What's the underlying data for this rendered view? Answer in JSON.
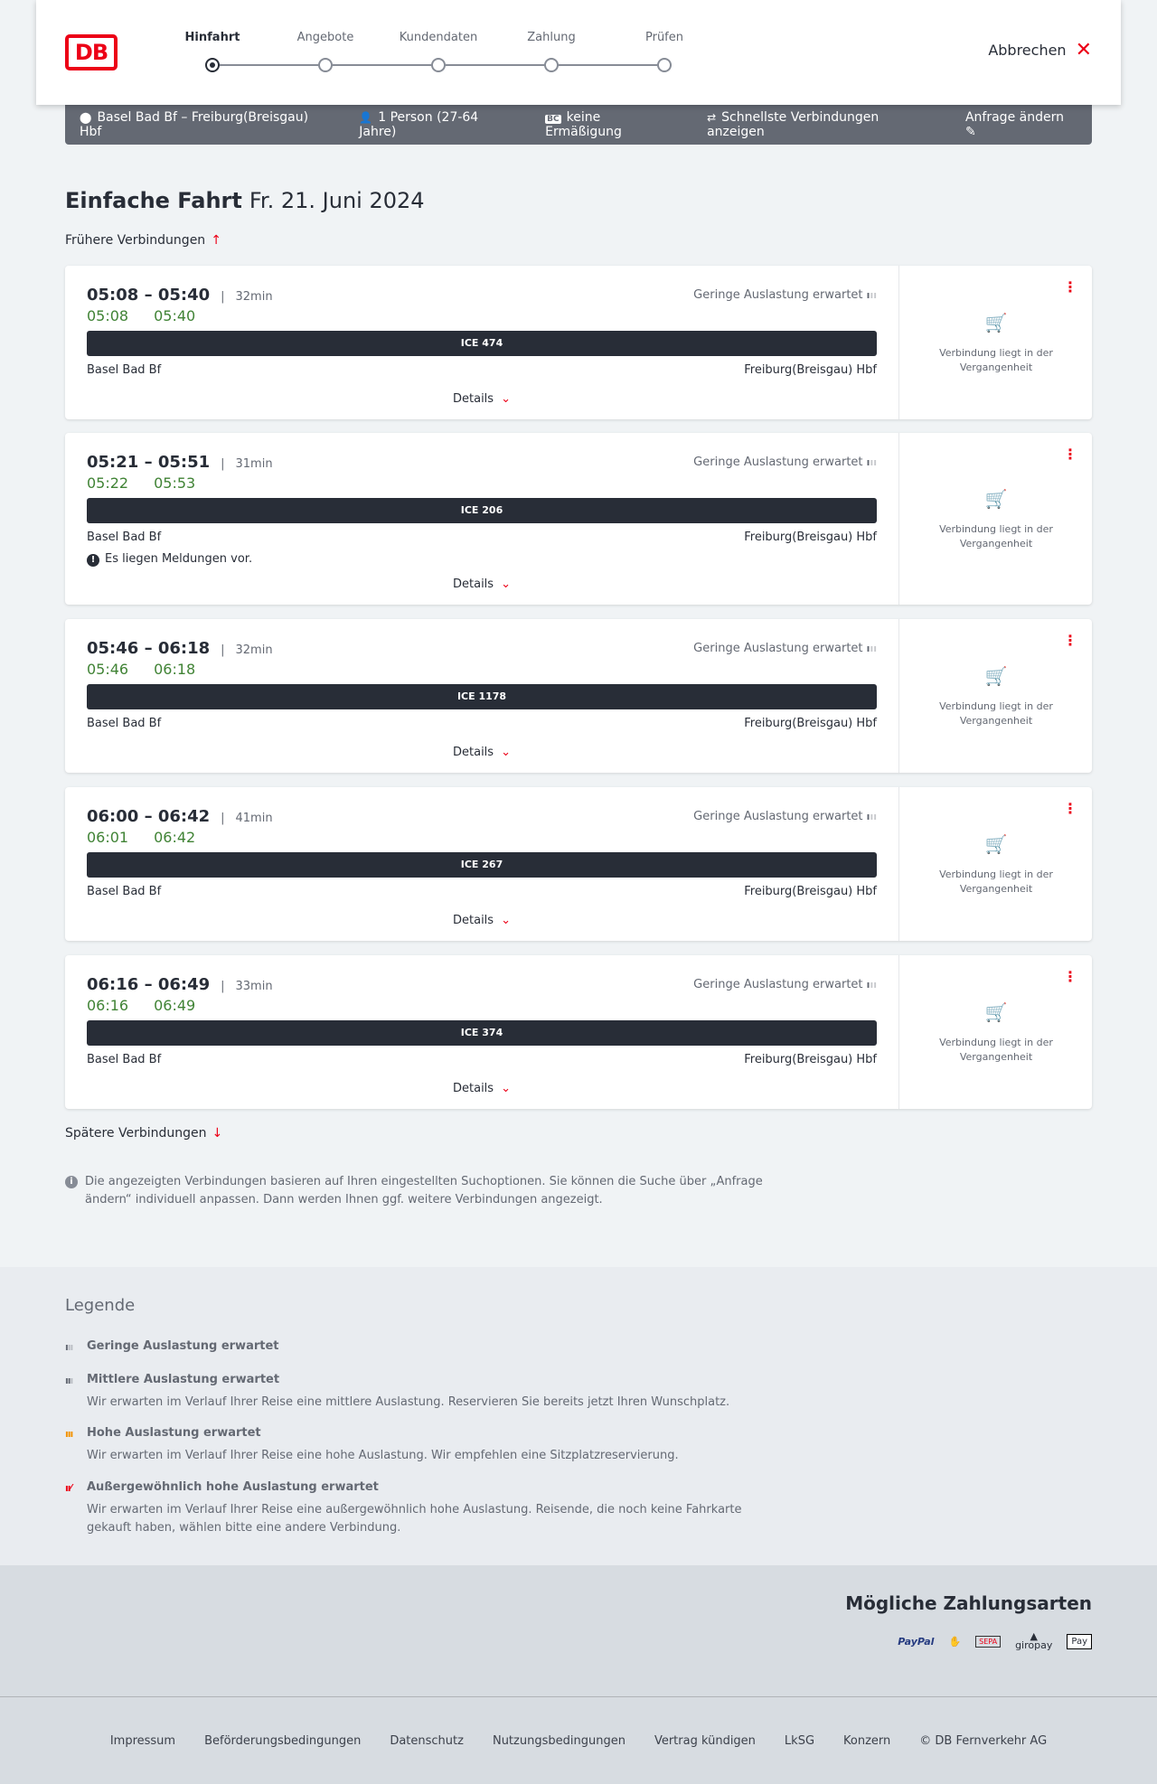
{
  "header": {
    "logo": "DB",
    "steps": [
      "Hinfahrt",
      "Angebote",
      "Kundendaten",
      "Zahlung",
      "Prüfen"
    ],
    "active_step": 0,
    "cancel": "Abbrechen"
  },
  "summary": {
    "route": "Basel Bad Bf – Freiburg(Breisgau) Hbf",
    "passengers": "1 Person (27-64 Jahre)",
    "discount_badge": "BC",
    "discount": "keine Ermäßigung",
    "fastest": "Schnellste Verbindungen anzeigen",
    "edit": "Anfrage ändern"
  },
  "title": {
    "type": "Einfache Fahrt",
    "date": "Fr. 21. Juni 2024"
  },
  "earlier": "Frühere Verbindungen",
  "later": "Spätere Verbindungen",
  "connections": [
    {
      "times": "05:08 – 05:40",
      "duration": "32min",
      "rt_dep": "05:08",
      "rt_arr": "05:40",
      "load": "Geringe Auslastung erwartet",
      "train": "ICE 474",
      "from": "Basel Bad Bf",
      "to": "Freiburg(Breisgau) Hbf",
      "message": "",
      "details": "Details",
      "status": "Verbindung liegt in der Vergangenheit"
    },
    {
      "times": "05:21 – 05:51",
      "duration": "31min",
      "rt_dep": "05:22",
      "rt_arr": "05:53",
      "load": "Geringe Auslastung erwartet",
      "train": "ICE 206",
      "from": "Basel Bad Bf",
      "to": "Freiburg(Breisgau) Hbf",
      "message": "Es liegen Meldungen vor.",
      "details": "Details",
      "status": "Verbindung liegt in der Vergangenheit"
    },
    {
      "times": "05:46 – 06:18",
      "duration": "32min",
      "rt_dep": "05:46",
      "rt_arr": "06:18",
      "load": "Geringe Auslastung erwartet",
      "train": "ICE 1178",
      "from": "Basel Bad Bf",
      "to": "Freiburg(Breisgau) Hbf",
      "message": "",
      "details": "Details",
      "status": "Verbindung liegt in der Vergangenheit"
    },
    {
      "times": "06:00 – 06:42",
      "duration": "41min",
      "rt_dep": "06:01",
      "rt_arr": "06:42",
      "load": "Geringe Auslastung erwartet",
      "train": "ICE 267",
      "from": "Basel Bad Bf",
      "to": "Freiburg(Breisgau) Hbf",
      "message": "",
      "details": "Details",
      "status": "Verbindung liegt in der Vergangenheit"
    },
    {
      "times": "06:16 – 06:49",
      "duration": "33min",
      "rt_dep": "06:16",
      "rt_arr": "06:49",
      "load": "Geringe Auslastung erwartet",
      "train": "ICE 374",
      "from": "Basel Bad Bf",
      "to": "Freiburg(Breisgau) Hbf",
      "message": "",
      "details": "Details",
      "status": "Verbindung liegt in der Vergangenheit"
    }
  ],
  "info": "Die angezeigten Verbindungen basieren auf Ihren eingestellten Suchoptionen. Sie können die Suche über „Anfrage ändern“ individuell anpassen. Dann werden Ihnen ggf. weitere Verbindungen angezeigt.",
  "legend": {
    "title": "Legende",
    "items": [
      {
        "label": "Geringe Auslastung erwartet",
        "text": "",
        "color": "#646973"
      },
      {
        "label": "Mittlere Auslastung erwartet",
        "text": "Wir erwarten im Verlauf Ihrer Reise eine mittlere Auslastung. Reservieren Sie bereits jetzt Ihren Wunschplatz.",
        "color": "#646973"
      },
      {
        "label": "Hohe Auslastung erwartet",
        "text": "Wir erwarten im Verlauf Ihrer Reise eine hohe Auslastung. Wir empfehlen eine Sitzplatzreservierung.",
        "color": "#f39200"
      },
      {
        "label": "Außergewöhnlich hohe Auslastung erwartet",
        "text": "Wir erwarten im Verlauf Ihrer Reise eine außergewöhnlich hohe Auslastung. Reisende, die noch keine Fahrkarte gekauft haben, wählen bitte eine andere Verbindung.",
        "color": "#ec0016"
      }
    ]
  },
  "payment": {
    "title": "Mögliche Zahlungsarten",
    "methods": [
      "PayPal",
      "Kreditkarte",
      "SEPA",
      "giropay",
      "Pay"
    ]
  },
  "footer": [
    "Impressum",
    "Beförderungsbedingungen",
    "Datenschutz",
    "Nutzungsbedingungen",
    "Vertrag kündigen",
    "LkSG",
    "Konzern",
    "© DB Fernverkehr AG"
  ],
  "colors": {
    "accent": "#ec0016",
    "realtime": "#408335",
    "dark": "#282d37"
  }
}
